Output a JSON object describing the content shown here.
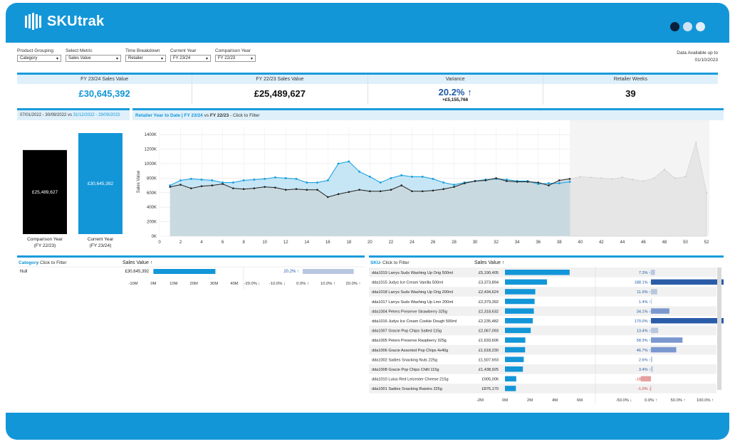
{
  "app": {
    "name": "SKUtrak"
  },
  "colors": {
    "brand": "#1396d8",
    "dark": "#0b1f3a",
    "light_bar": "#b8c7e0",
    "negative": "#e6a0a0"
  },
  "filters": [
    {
      "label": "Product Grouping",
      "value": "Category"
    },
    {
      "label": "Select Metric",
      "value": "Sales Value"
    },
    {
      "label": "Time Breakdown",
      "value": "Retailer"
    },
    {
      "label": "Current Year",
      "value": "FY 23/24"
    },
    {
      "label": "Comparison Year",
      "value": "FY 22/23"
    }
  ],
  "data_available": {
    "line1": "Data Available up to",
    "line2": "01/10/2023"
  },
  "kpis": [
    {
      "label": "FY 23/24 Sales Value",
      "value": "£30,645,392"
    },
    {
      "label": "FY 22/23 Sales Value",
      "value": "£25,489,627"
    },
    {
      "label": "Variance",
      "value": "20.2% ↑",
      "sub": "+£5,155,766"
    },
    {
      "label": "Retailer Weeks",
      "value": "39"
    }
  ],
  "ytd_panel": {
    "date_a": "07/01/2022 - 30/09/2022",
    "vs": " vs ",
    "date_b": "31/12/2022 - 29/09/2023",
    "bars": [
      {
        "value_label": "£25,489,627",
        "value": 25489627,
        "label1": "Comparison Year",
        "label2": "(FY 22/23)"
      },
      {
        "value_label": "£30,645,392",
        "value": 30645392,
        "label1": "Current Year",
        "label2": "(FY 23/24)"
      }
    ]
  },
  "line_panel": {
    "title_a": "Retailer Year to Date | FY 23/24",
    "title_vs": " vs ",
    "title_b": "FY 22/23",
    "title_c": " - Click to Filter"
  },
  "category_panel": {
    "title": "Category",
    "title_suffix": " - Click to Filter",
    "col_header": "Sales Value ↑",
    "row": {
      "name": "Null",
      "value_label": "£30,645,392",
      "value": 30645392,
      "variance_label": "20.2% ↑",
      "variance": 20.2
    },
    "value_axis": [
      "-10M",
      "0M",
      "10M",
      "20M",
      "30M",
      "40M"
    ],
    "var_axis": [
      "-20.0% ↓",
      "-10.0% ↓",
      "0.0% ↑",
      "10.0% ↑",
      "20.0% ↑"
    ]
  },
  "sku_panel": {
    "title": "SKU",
    "title_suffix": " - Click to Filter",
    "col_header": "Sales Value ↑",
    "rows": [
      {
        "name": "dda1019 Larrys Suds Washing Up Orig 500ml",
        "value_label": "£5,190,405",
        "value": 5190405,
        "var_label": "7.3% ↑",
        "var": 7.3
      },
      {
        "name": "dda1015 Judys Ice Cream Vanilla 500ml",
        "value_label": "£3,373,894",
        "value": 3373894,
        "var_label": "188.1% ↑",
        "var": 188.1
      },
      {
        "name": "dda1018 Larrys Suds Washing Up Orig 200ml",
        "value_label": "£2,434,624",
        "value": 2434624,
        "var_label": "11.6% ↑",
        "var": 11.6
      },
      {
        "name": "dda1017 Larrys Suds Washing Up Lmn 200ml",
        "value_label": "£2,379,392",
        "value": 2379392,
        "var_label": "1.4% ↑",
        "var": 1.4
      },
      {
        "name": "dda1004 Peters Preserve Strawberry 325g",
        "value_label": "£2,318,632",
        "value": 2318632,
        "var_label": "34.1% ↑",
        "var": 34.1
      },
      {
        "name": "dda1016 Judys Ice Cream Cookie Dough 500ml",
        "value_label": "£2,235,482",
        "value": 2235482,
        "var_label": "170.0% ↑",
        "var": 170.0
      },
      {
        "name": "dda1007 Gracie Pop Chips Salted 115g",
        "value_label": "£2,067,093",
        "value": 2067093,
        "var_label": "13.4% ↑",
        "var": 13.4
      },
      {
        "name": "dda1005 Peters Preserve Raspberry 325g",
        "value_label": "£1,633,606",
        "value": 1633606,
        "var_label": "58.3% ↑",
        "var": 58.3
      },
      {
        "name": "dda1006 Gracie Assorted Pop Chips 4x40g",
        "value_label": "£1,618,230",
        "value": 1618230,
        "var_label": "46.7% ↑",
        "var": 46.7
      },
      {
        "name": "dda1002 Sadies Snacking Nuts 225g",
        "value_label": "£1,507,693",
        "value": 1507693,
        "var_label": "2.6% ↑",
        "var": 2.6
      },
      {
        "name": "dda1008 Gracie Pop Chips Chilli 115g",
        "value_label": "£1,438,925",
        "value": 1438925,
        "var_label": "3.4% ↑",
        "var": 3.4
      },
      {
        "name": "dda1010 Lulus Red Leicester Cheese 215g",
        "value_label": "£905,006",
        "value": 905006,
        "var_label": "-18.7% ↓",
        "var": -18.7
      },
      {
        "name": "dda1001 Sadies Snacking Raisins 225g",
        "value_label": "£876,170",
        "value": 876170,
        "var_label": "-1.0% ↓",
        "var": -1.0
      }
    ],
    "value_axis": [
      "-2M",
      "0M",
      "2M",
      "4M",
      "6M"
    ],
    "var_axis": [
      "-50.0% ↓",
      "0.0% ↑",
      "50.0% ↑",
      "100.0% ↑"
    ]
  },
  "chart_data": {
    "type": "line",
    "ylabel": "Sales Value",
    "xlim": [
      0,
      52
    ],
    "ylim": [
      0,
      1500000
    ],
    "x_ticks": [
      0,
      2,
      4,
      6,
      8,
      10,
      12,
      14,
      16,
      18,
      20,
      22,
      24,
      26,
      28,
      30,
      32,
      34,
      36,
      38,
      40,
      42,
      44,
      46,
      48,
      50,
      52
    ],
    "y_ticks": [
      "0K",
      "200K",
      "400K",
      "600K",
      "800K",
      "1000K",
      "1200K",
      "1400K"
    ],
    "y_tick_values": [
      0,
      200000,
      400000,
      600000,
      800000,
      1000000,
      1200000,
      1400000
    ],
    "series": [
      {
        "name": "FY 23/24",
        "x": [
          1,
          2,
          3,
          4,
          5,
          6,
          7,
          8,
          9,
          10,
          11,
          12,
          13,
          14,
          15,
          16,
          17,
          18,
          19,
          20,
          21,
          22,
          23,
          24,
          25,
          26,
          27,
          28,
          29,
          30,
          31,
          32,
          33,
          34,
          35,
          36,
          37,
          38,
          39
        ],
        "values": [
          700000,
          770000,
          790000,
          780000,
          770000,
          740000,
          740000,
          770000,
          780000,
          790000,
          810000,
          800000,
          790000,
          740000,
          740000,
          770000,
          1000000,
          1030000,
          890000,
          820000,
          740000,
          800000,
          840000,
          820000,
          820000,
          790000,
          740000,
          710000,
          740000,
          760000,
          780000,
          790000,
          780000,
          760000,
          760000,
          720000,
          730000,
          730000,
          750000
        ]
      },
      {
        "name": "FY 22/23",
        "x": [
          1,
          2,
          3,
          4,
          5,
          6,
          7,
          8,
          9,
          10,
          11,
          12,
          13,
          14,
          15,
          16,
          17,
          18,
          19,
          20,
          21,
          22,
          23,
          24,
          25,
          26,
          27,
          28,
          29,
          30,
          31,
          32,
          33,
          34,
          35,
          36,
          37,
          38,
          39
        ],
        "values": [
          680000,
          710000,
          660000,
          690000,
          700000,
          720000,
          660000,
          650000,
          660000,
          680000,
          670000,
          640000,
          650000,
          640000,
          640000,
          540000,
          580000,
          610000,
          640000,
          620000,
          620000,
          640000,
          700000,
          620000,
          620000,
          630000,
          650000,
          680000,
          730000,
          760000,
          770000,
          800000,
          760000,
          750000,
          750000,
          740000,
          700000,
          770000,
          790000
        ]
      },
      {
        "name": "Remaining Year",
        "x": [
          39,
          40,
          41,
          42,
          43,
          44,
          45,
          46,
          47,
          48,
          49,
          50,
          51,
          52
        ],
        "values": [
          790000,
          820000,
          810000,
          800000,
          790000,
          810000,
          780000,
          760000,
          800000,
          920000,
          800000,
          820000,
          1290000,
          600000
        ]
      }
    ]
  }
}
